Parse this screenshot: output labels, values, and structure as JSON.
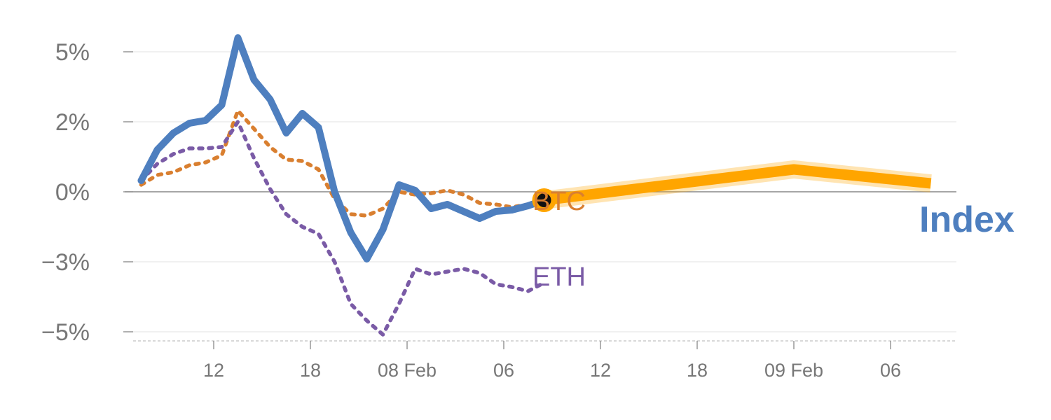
{
  "chart_data": {
    "type": "line",
    "y_unit": "%",
    "y_ticks": [
      {
        "value": 5,
        "label": "5%"
      },
      {
        "value": 2.5,
        "label": "2%"
      },
      {
        "value": 0,
        "label": "0%"
      },
      {
        "value": -2.5,
        "label": "−3%"
      },
      {
        "value": -5,
        "label": "−5%"
      }
    ],
    "ylim": [
      -5.35,
      5.7
    ],
    "x_ticks": [
      {
        "hour": 12,
        "label": "12"
      },
      {
        "hour": 18,
        "label": "18"
      },
      {
        "hour": 24,
        "label": "08 Feb"
      },
      {
        "hour": 30,
        "label": "06"
      },
      {
        "hour": 36,
        "label": "12"
      },
      {
        "hour": 42,
        "label": "18"
      },
      {
        "hour": 48,
        "label": "09 Feb"
      },
      {
        "hour": 54,
        "label": "06"
      }
    ],
    "x_axis_origin": "07 Feb 00:00",
    "xlim": [
      6.2,
      58.0
    ],
    "grid": true,
    "legend": "inline labels at line ends",
    "series": [
      {
        "name": "Index",
        "color": "#4e7fbf",
        "style": "solid",
        "x": [
          7.5,
          8.5,
          9.5,
          10.5,
          11.5,
          12.5,
          13.5,
          14.5,
          15.5,
          16.5,
          17.5,
          18.5,
          19.5,
          20.5,
          21.5,
          22.5,
          23.5,
          24.5,
          25.5,
          26.5,
          27.5,
          28.5,
          29.5,
          30.5,
          31.5,
          32.5
        ],
        "values": [
          0.4,
          1.5,
          2.1,
          2.45,
          2.55,
          3.1,
          5.5,
          4.0,
          3.3,
          2.1,
          2.8,
          2.3,
          0.0,
          -1.45,
          -2.4,
          -1.35,
          0.25,
          0.05,
          -0.6,
          -0.45,
          -0.7,
          -0.95,
          -0.7,
          -0.65,
          -0.5,
          -0.3
        ]
      },
      {
        "name": "BTC",
        "color": "#d97f30",
        "style": "dotted",
        "x": [
          7.5,
          8.5,
          9.5,
          10.5,
          11.5,
          12.5,
          13.5,
          14.5,
          15.5,
          16.5,
          17.5,
          18.5,
          19.5,
          20.5,
          21.5,
          22.5,
          23.5,
          24.5,
          25.5,
          26.5,
          27.5,
          28.5,
          29.5,
          30.5,
          31.5,
          32.5
        ],
        "values": [
          0.25,
          0.6,
          0.7,
          0.95,
          1.05,
          1.3,
          2.9,
          2.25,
          1.6,
          1.15,
          1.1,
          0.8,
          -0.25,
          -0.8,
          -0.85,
          -0.6,
          0.0,
          -0.1,
          -0.05,
          0.05,
          -0.1,
          -0.4,
          -0.45,
          -0.55,
          -0.45,
          -0.3
        ]
      },
      {
        "name": "ETH",
        "color": "#7a5ba6",
        "style": "dotted",
        "x": [
          7.5,
          8.5,
          9.5,
          10.5,
          11.5,
          12.5,
          13.5,
          14.5,
          15.5,
          16.5,
          17.5,
          18.5,
          19.5,
          20.5,
          21.5,
          22.5,
          23.5,
          24.5,
          25.5,
          26.5,
          27.5,
          28.5,
          29.5,
          30.5,
          31.5,
          32.5
        ],
        "values": [
          0.4,
          1.0,
          1.35,
          1.55,
          1.55,
          1.6,
          2.5,
          1.2,
          0.1,
          -0.8,
          -1.25,
          -1.5,
          -2.5,
          -4.0,
          -4.6,
          -5.1,
          -4.0,
          -2.75,
          -2.95,
          -2.85,
          -2.75,
          -2.9,
          -3.3,
          -3.4,
          -3.55,
          -3.25
        ]
      },
      {
        "name": "Index",
        "color": "#ffa500",
        "style": "solid-thick",
        "x": [
          32.5,
          48.0,
          56.5
        ],
        "values": [
          -0.3,
          0.8,
          0.3
        ]
      }
    ],
    "highlight_point": {
      "x": 32.5,
      "value": -0.3,
      "color": "#ffa500"
    }
  },
  "labels": {
    "btc": "BTC",
    "eth": "ETH",
    "index": "Index"
  }
}
